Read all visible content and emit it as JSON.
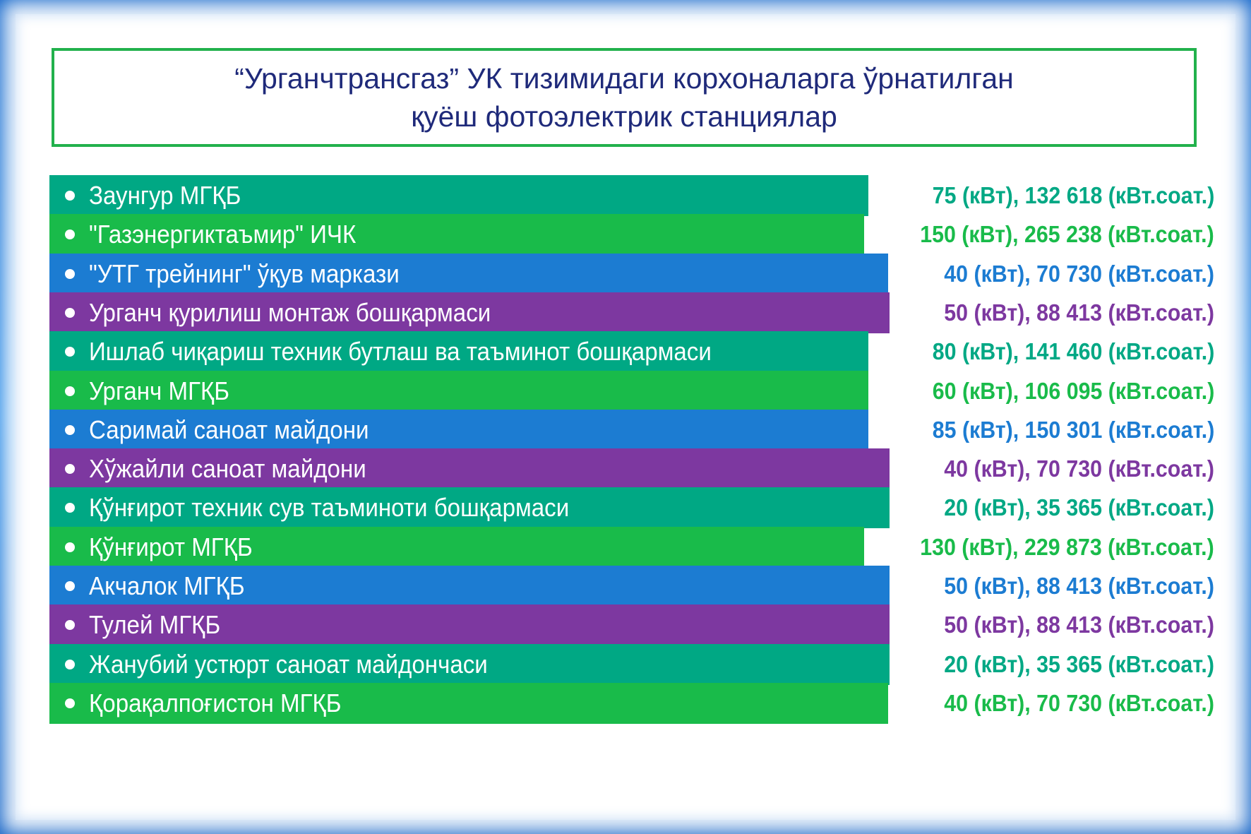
{
  "colors": {
    "teal": "#00a884",
    "green": "#19bb4a",
    "blue": "#1c7cd2",
    "purple": "#7d38a0",
    "title_border": "#22b14c",
    "title_text": "#1f2a7a"
  },
  "title": {
    "line1": "“Урганчтрансгаз” УК тизимидаги корхоналарга ўрнатилган",
    "line2": "қуёш фотоэлектрик станциялар"
  },
  "rows": [
    {
      "label": "Заунгур МГҚБ",
      "value": "75 (кВт), 132 618 (кВт.соат.)",
      "color": "teal"
    },
    {
      "label": "\"Газэнергиктаъмир\" ИЧК",
      "value": "150 (кВт), 265 238 (кВт.соат.)",
      "color": "green"
    },
    {
      "label": "\"УТГ трейнинг\" ўқув маркази",
      "value": "40 (кВт), 70 730 (кВт.соат.)",
      "color": "blue"
    },
    {
      "label": "Урганч қурилиш монтаж бошқармаси",
      "value": "50 (кВт), 88 413 (кВт.соат.)",
      "color": "purple"
    },
    {
      "label": "Ишлаб чиқариш техник бутлаш ва таъминот бошқармаси",
      "value": "80 (кВт), 141 460 (кВт.соат.)",
      "color": "teal"
    },
    {
      "label": "Урганч МГҚБ",
      "value": "60 (кВт), 106 095 (кВт.соат.)",
      "color": "green"
    },
    {
      "label": "Саримай саноат майдони",
      "value": "85 (кВт), 150 301 (кВт.соат.)",
      "color": "blue"
    },
    {
      "label": "Хўжайли саноат майдони",
      "value": "40 (кВт), 70 730 (кВт.соат.)",
      "color": "purple"
    },
    {
      "label": "Қўнғирот техник сув таъминоти бошқармаси",
      "value": "20 (кВт), 35 365 (кВт.соат.)",
      "color": "teal"
    },
    {
      "label": "Қўнғирот МГҚБ",
      "value": "130 (кВт), 229 873 (кВт.соат.)",
      "color": "green"
    },
    {
      "label": "Акчалок МГҚБ",
      "value": "50 (кВт), 88 413 (кВт.соат.)",
      "color": "blue"
    },
    {
      "label": "Тулей МГҚБ",
      "value": "50 (кВт), 88 413 (кВт.соат.)",
      "color": "purple"
    },
    {
      "label": "Жанубий устюрт саноат майдончаси",
      "value": "20 (кВт), 35 365 (кВт.соат.)",
      "color": "teal"
    },
    {
      "label": "Қорақалпоғистон МГҚБ",
      "value": "40 (кВт), 70 730 (кВт.соат.)",
      "color": "green"
    }
  ]
}
